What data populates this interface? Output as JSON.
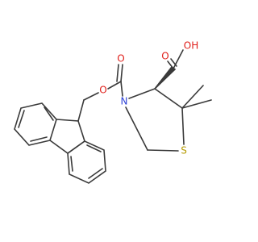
{
  "atoms": [
    {
      "label": "O"
    },
    {
      "label": "OH"
    },
    {
      "label": "O"
    },
    {
      "label": "O"
    },
    {
      "label": "N"
    },
    {
      "label": "S"
    }
  ]
}
